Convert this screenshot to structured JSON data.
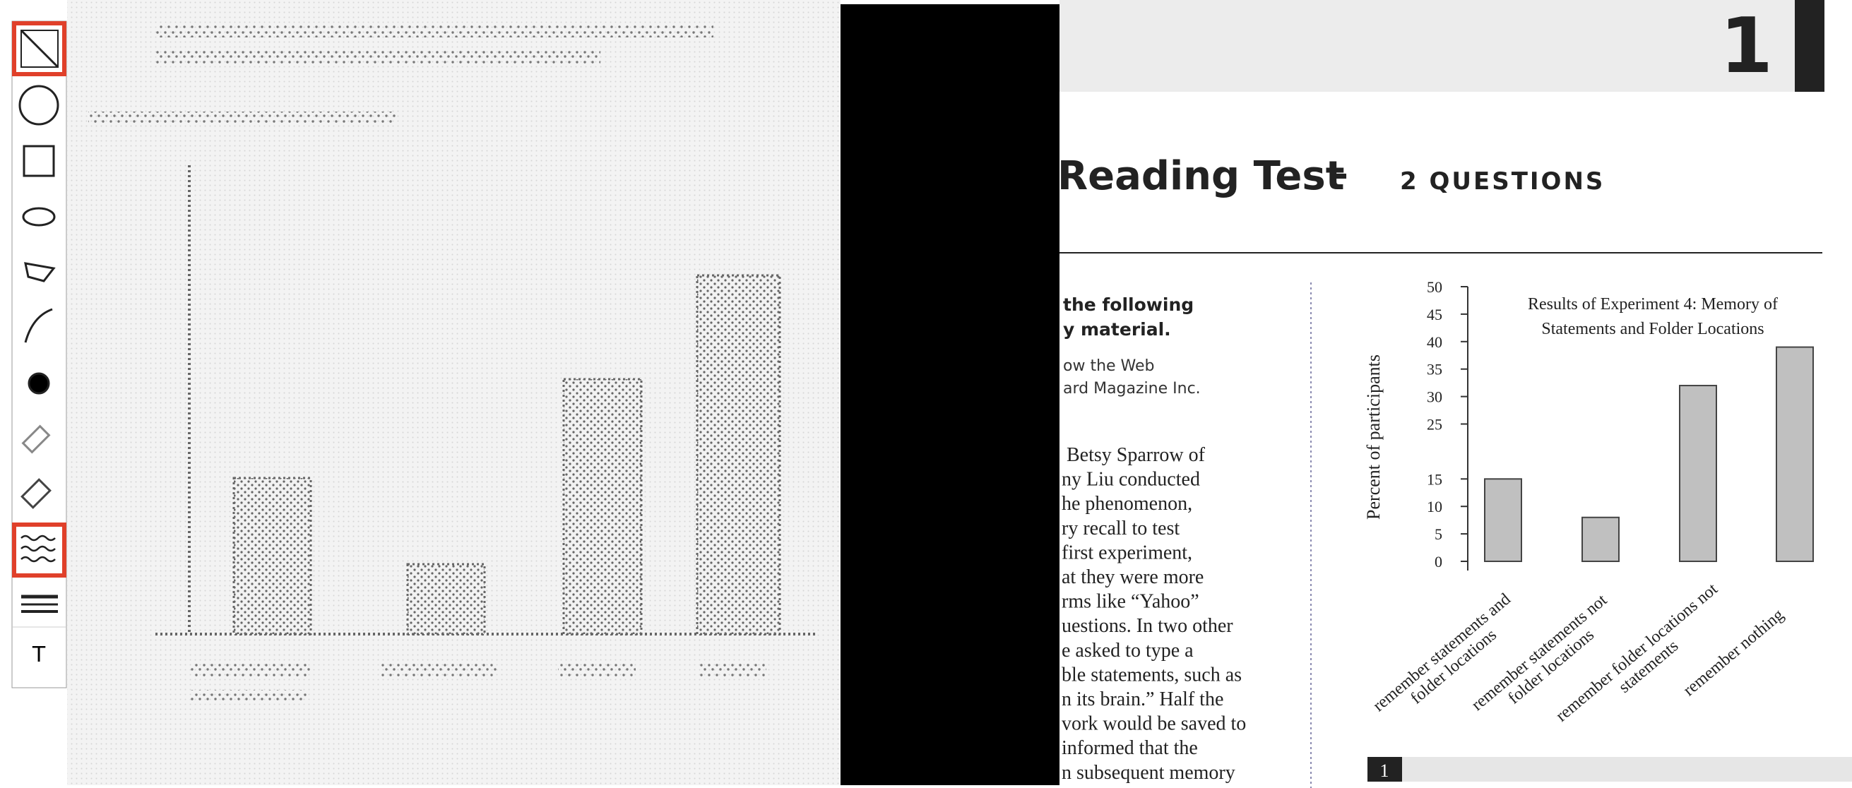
{
  "toolbar": {
    "text_tool": "T"
  },
  "document": {
    "page_number": "1",
    "title": "Reading Test",
    "separator": "-",
    "subtitle": "2 QUESTIONS",
    "instructions": [
      "the following",
      "y material."
    ],
    "credit": [
      "ow the Web",
      "ard Magazine Inc."
    ],
    "passage": [
      "Betsy Sparrow of",
      "ny Liu conducted",
      "he phenomenon,",
      "ry recall to test",
      "first experiment,",
      "at they were more",
      "rms like “Yahoo”",
      "uestions. In two other",
      "e asked to type a",
      "ble statements, such as",
      "n its brain.” Half the",
      "vork would be saved to",
      "informed that the",
      "n subsequent memory"
    ],
    "footer_page": "1"
  },
  "chart_data": {
    "type": "bar",
    "title": "Results of Experiment 4: Memory of Statements and Folder Locations",
    "y_label": "Percent of participants",
    "categories": [
      "remember statements and folder locations",
      "remember statements not folder locations",
      "remember folder locations not statements",
      "remember nothing"
    ],
    "values": [
      15,
      8,
      32,
      39
    ],
    "color": "#c0c0c0",
    "ylim": [
      0,
      50
    ],
    "yticks": [
      0,
      5,
      10,
      15,
      25,
      30,
      35,
      40,
      45,
      50
    ]
  }
}
